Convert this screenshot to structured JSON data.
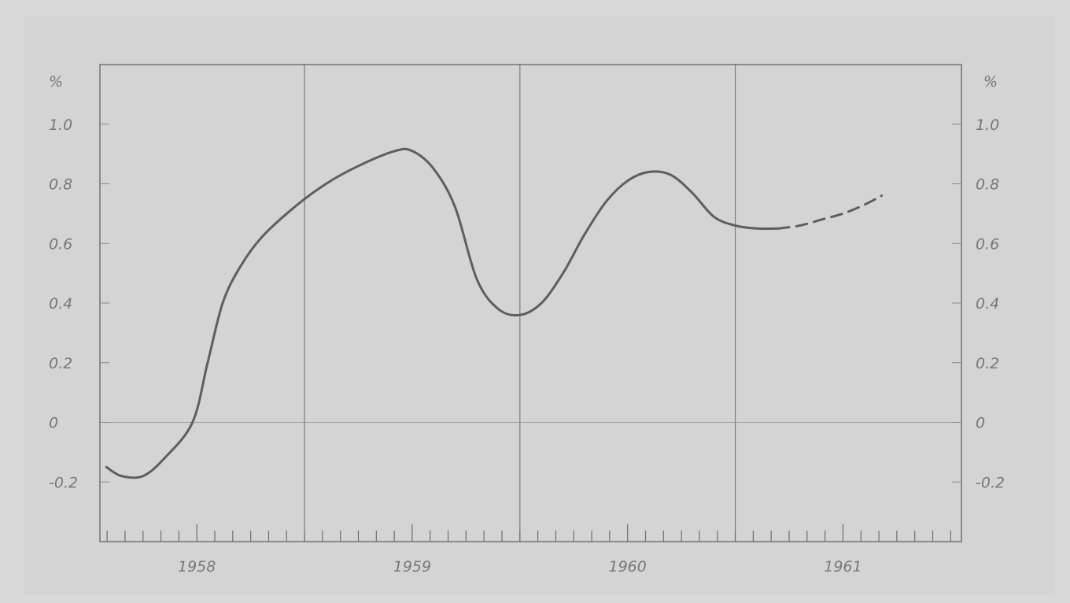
{
  "chart_data": {
    "type": "line",
    "y_unit_left": "%",
    "y_unit_right": "%",
    "yticks": [
      "1.0",
      "0.8",
      "0.6",
      "0.4",
      "0.2",
      "0",
      "-0.2"
    ],
    "ytick_values": [
      1.0,
      0.8,
      0.6,
      0.4,
      0.2,
      0,
      -0.2
    ],
    "ylim": [
      -0.4,
      1.2
    ],
    "xlim": [
      1957.55,
      1961.55
    ],
    "xticks": [
      "1958",
      "1959",
      "1960",
      "1961"
    ],
    "xtick_values": [
      1958.0,
      1959.0,
      1960.0,
      1961.0
    ],
    "grid_years": [
      1958.5,
      1959.5,
      1960.5
    ],
    "grid": true,
    "series": [
      {
        "style": "solid",
        "x": [
          1957.58,
          1957.65,
          1957.75,
          1957.85,
          1957.98,
          1958.05,
          1958.12,
          1958.2,
          1958.3,
          1958.45,
          1958.6,
          1958.75,
          1958.92,
          1959.0,
          1959.1,
          1959.2,
          1959.3,
          1959.4,
          1959.5,
          1959.6,
          1959.7,
          1959.8,
          1959.9,
          1960.0,
          1960.1,
          1960.2,
          1960.3,
          1960.4,
          1960.5,
          1960.6,
          1960.7
        ],
        "values": [
          -0.15,
          -0.18,
          -0.18,
          -0.12,
          0.0,
          0.2,
          0.4,
          0.52,
          0.62,
          0.72,
          0.8,
          0.86,
          0.91,
          0.91,
          0.85,
          0.72,
          0.48,
          0.38,
          0.36,
          0.4,
          0.5,
          0.63,
          0.74,
          0.81,
          0.84,
          0.83,
          0.77,
          0.69,
          0.66,
          0.65,
          0.65
        ]
      },
      {
        "style": "dashed",
        "x": [
          1960.7,
          1960.8,
          1960.9,
          1961.0,
          1961.1,
          1961.18
        ],
        "values": [
          0.65,
          0.66,
          0.68,
          0.7,
          0.73,
          0.76
        ]
      }
    ]
  }
}
